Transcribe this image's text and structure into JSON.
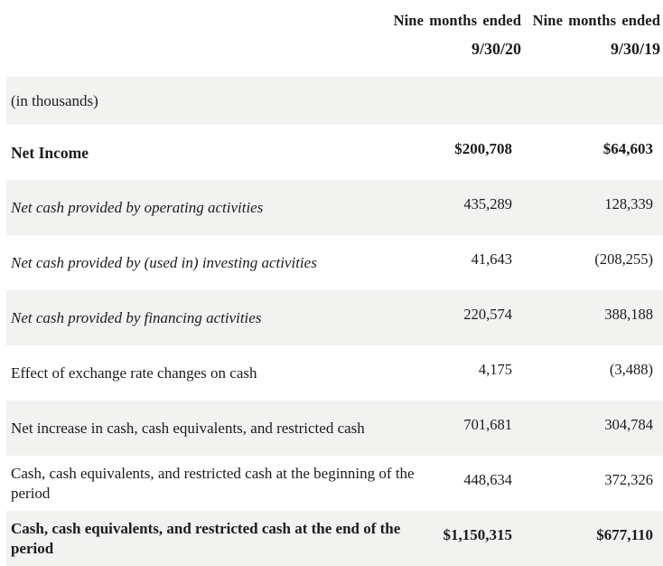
{
  "colors": {
    "background": "#ffffff",
    "stripe": "#f2f2f1",
    "text": "#1b1b1b"
  },
  "table": {
    "header": {
      "col_2020": {
        "line1": "Nine months ended",
        "line2": "9/30/20"
      },
      "col_2019": {
        "line1": "Nine months ended",
        "line2": "9/30/19"
      }
    },
    "units_label": "(in thousands)",
    "rows": [
      {
        "label": "Net Income",
        "v2020": "$200,708",
        "v2019": "$64,603"
      },
      {
        "label": "Net cash provided by operating activities",
        "v2020": "435,289",
        "v2019": "128,339"
      },
      {
        "label": "Net cash provided by (used in) investing activities",
        "v2020": "41,643",
        "v2019": "(208,255)"
      },
      {
        "label": "Net cash provided by financing activities",
        "v2020": "220,574",
        "v2019": "388,188"
      },
      {
        "label": "Effect of exchange rate changes on cash",
        "v2020": "4,175",
        "v2019": "(3,488)"
      },
      {
        "label": "Net increase in cash, cash equivalents, and restricted cash",
        "v2020": "701,681",
        "v2019": "304,784"
      },
      {
        "label": "Cash, cash equivalents, and restricted cash at the beginning of the period",
        "v2020": "448,634",
        "v2019": "372,326"
      },
      {
        "label": "Cash, cash equivalents, and restricted cash at the end of the period",
        "v2020": "$1,150,315",
        "v2019": "$677,110"
      }
    ]
  }
}
